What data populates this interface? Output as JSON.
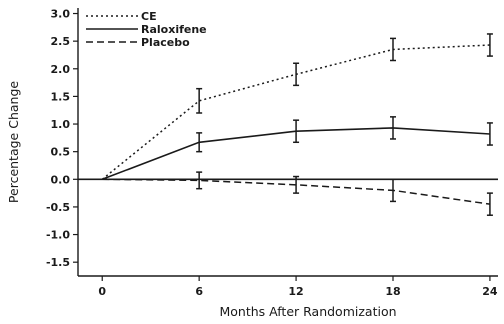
{
  "chart_data": {
    "type": "line",
    "xlabel": "Months After Randomization",
    "ylabel": "Percentage Change",
    "x_ticks": [
      0,
      6,
      12,
      18,
      24
    ],
    "y_ticks": [
      3.0,
      2.5,
      2.0,
      1.5,
      1.0,
      0.5,
      0.0,
      -0.5,
      -1.0,
      -1.5
    ],
    "y_tick_labels": [
      "3.0",
      "2.5",
      "2.0",
      "1.5",
      "1.0",
      "0.5",
      "0.0",
      "-0.5",
      "-1.0",
      "-1.5"
    ],
    "x_tick_labels": [
      "0",
      "6",
      "12",
      "18",
      "24"
    ],
    "xlim": [
      -1.5,
      24.5
    ],
    "ylim": [
      -1.75,
      3.1
    ],
    "reference_line_y": 0,
    "legend_position": "top-left",
    "series": [
      {
        "name": "CE",
        "style": "dotted",
        "x": [
          0,
          6,
          12,
          18,
          24
        ],
        "y": [
          0.0,
          1.42,
          1.9,
          2.35,
          2.43
        ],
        "error": [
          0,
          0.22,
          0.2,
          0.2,
          0.2
        ]
      },
      {
        "name": "Raloxifene",
        "style": "solid",
        "x": [
          0,
          6,
          12,
          18,
          24
        ],
        "y": [
          0.0,
          0.67,
          0.87,
          0.93,
          0.82
        ],
        "error": [
          0,
          0.17,
          0.2,
          0.2,
          0.2
        ]
      },
      {
        "name": "Placebo",
        "style": "dashed",
        "x": [
          0,
          6,
          12,
          18,
          24
        ],
        "y": [
          0.0,
          -0.02,
          -0.1,
          -0.2,
          -0.45
        ],
        "error": [
          0,
          0.15,
          0.15,
          0.2,
          0.2
        ]
      }
    ]
  },
  "colors": {
    "ink": "#1a1a1a",
    "background": "#ffffff"
  }
}
